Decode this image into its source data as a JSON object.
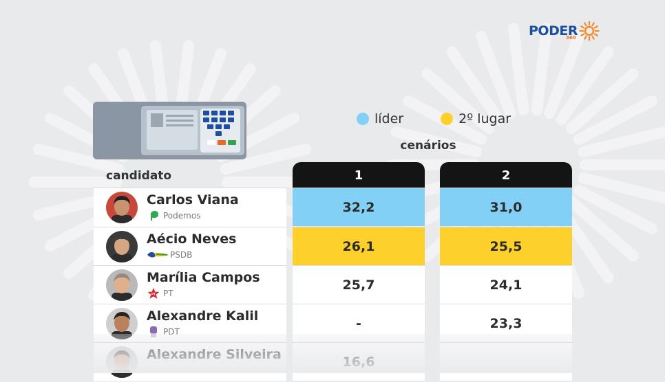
{
  "brand": {
    "logo_text": "PODER",
    "logo_sub": "360"
  },
  "legend": [
    {
      "label": "líder",
      "color": "#82d0f5"
    },
    {
      "label": "2º lugar",
      "color": "#fed02c"
    }
  ],
  "colors": {
    "leader": "#82d0f5",
    "second": "#fed02c",
    "header": "#141414"
  },
  "chart_data": {
    "type": "table",
    "scenarios_label": "cenários",
    "candidate_header": "candidato",
    "scenarios": [
      "1",
      "2"
    ],
    "rows": [
      {
        "name": "Carlos Viana",
        "party": "Podemos",
        "party_icon": "podemos-leaf-icon",
        "values": [
          "32,2",
          "31,0"
        ],
        "highlight": [
          "leader",
          "leader"
        ]
      },
      {
        "name": "Aécio Neves",
        "party": "PSDB",
        "party_icon": "psdb-toucan-icon",
        "values": [
          "26,1",
          "25,5"
        ],
        "highlight": [
          "second",
          "second"
        ]
      },
      {
        "name": "Marília Campos",
        "party": "PT",
        "party_icon": "pt-star-icon",
        "values": [
          "25,7",
          "24,1"
        ],
        "highlight": [
          "",
          ""
        ]
      },
      {
        "name": "Alexandre Kalil",
        "party": "PDT",
        "party_icon": "pdt-fist-icon",
        "values": [
          "-",
          "23,3"
        ],
        "highlight": [
          "",
          ""
        ]
      },
      {
        "name": "Alexandre Silveira",
        "party": "",
        "party_icon": "",
        "values": [
          "16,6",
          ""
        ],
        "highlight": [
          "",
          ""
        ]
      }
    ]
  }
}
